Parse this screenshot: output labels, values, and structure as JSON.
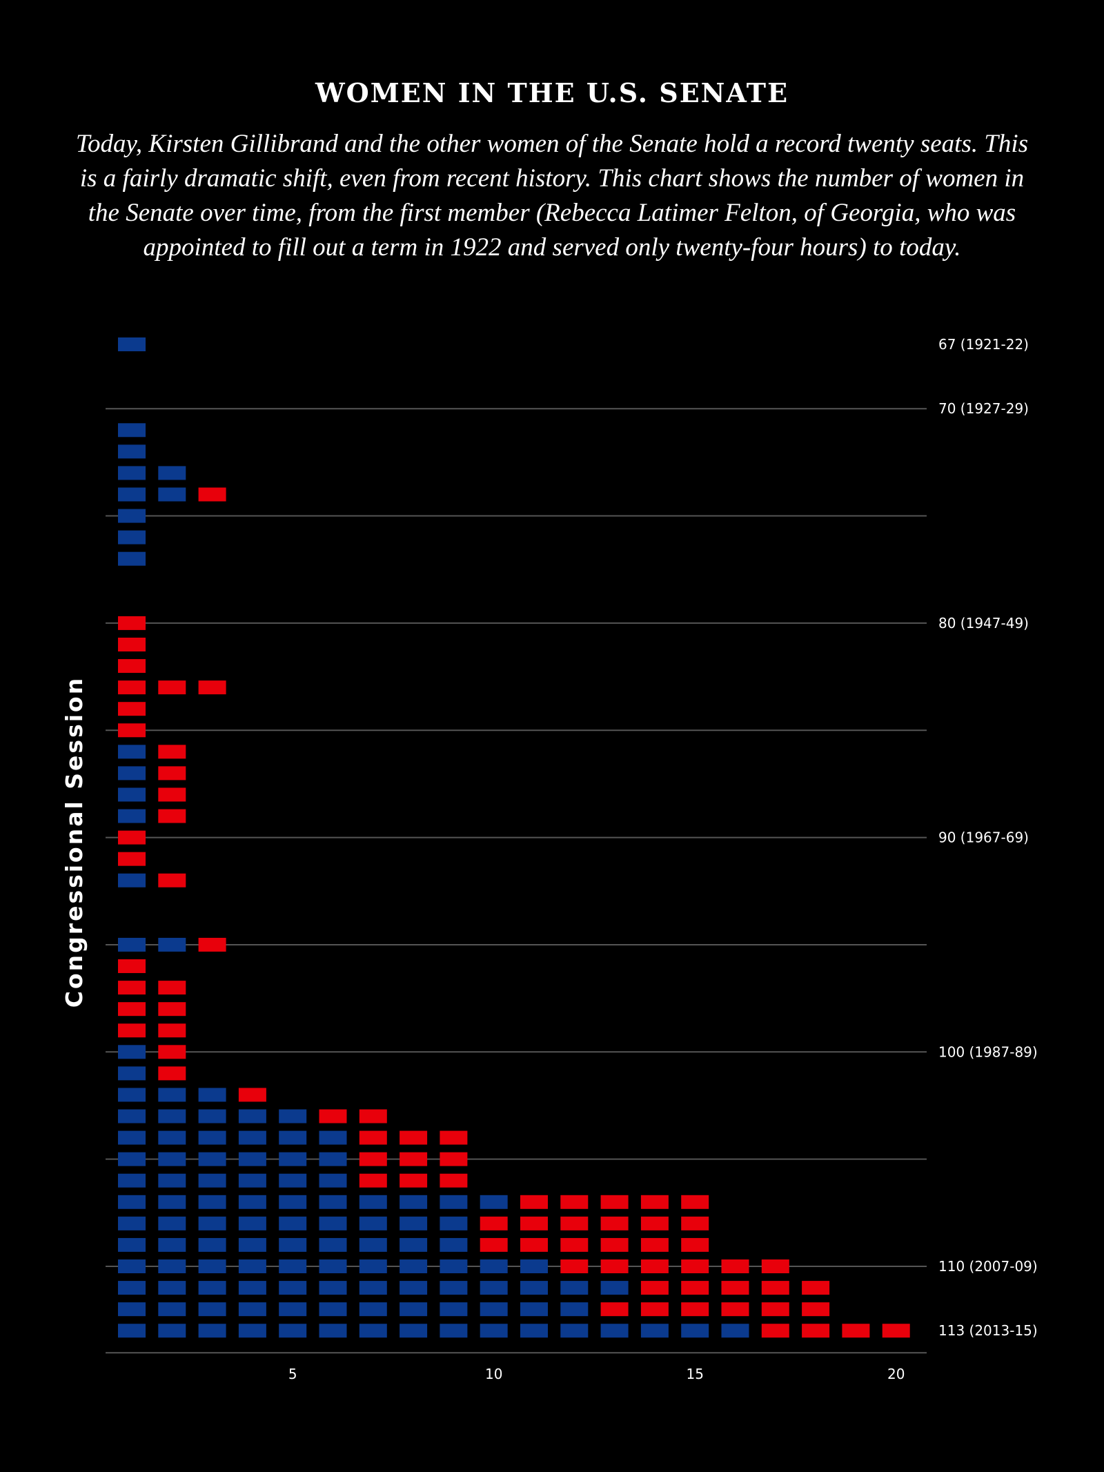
{
  "title": "Women in the U.S. Senate",
  "subtitle": "Today, Kirsten Gillibrand and the other women of the Senate hold a record twenty seats. This is a fairly dramatic shift, even from recent history. This chart shows the number of women in the Senate over time, from the first member (Rebecca Latimer Felton, of Georgia, who was appointed to fill out a term in 1922 and served only twenty-four hours) to today.",
  "colors": {
    "background": "#000000",
    "democrat": "#0b3a8e",
    "republican": "#e8000b",
    "gridline": "#555555",
    "text": "#ffffff"
  },
  "chart_data": {
    "type": "unit-bar",
    "title": "Women in the U.S. Senate",
    "ylabel": "Congressional Session",
    "xlabel": "",
    "xticks": [
      5,
      10,
      15,
      20
    ],
    "xlim": [
      0,
      20
    ],
    "ylim": [
      67,
      113
    ],
    "grid": true,
    "y_tick_labels": [
      {
        "session": 67,
        "label": "67 (1921-22)"
      },
      {
        "session": 70,
        "label": "70 (1927-29)"
      },
      {
        "session": 80,
        "label": "80 (1947-49)"
      },
      {
        "session": 90,
        "label": "90 (1967-69)"
      },
      {
        "session": 100,
        "label": "100 (1987-89)"
      },
      {
        "session": 110,
        "label": "110 (2007-09)"
      },
      {
        "session": 113,
        "label": "113 (2013-15)"
      }
    ],
    "gridline_sessions": [
      70,
      75,
      80,
      85,
      90,
      95,
      100,
      105,
      110
    ],
    "series_colors": {
      "D": "#0b3a8e",
      "R": "#e8000b"
    },
    "rows": [
      {
        "session": 67,
        "seats": "D"
      },
      {
        "session": 71,
        "seats": "D"
      },
      {
        "session": 72,
        "seats": "D"
      },
      {
        "session": 73,
        "seats": "DD"
      },
      {
        "session": 74,
        "seats": "DDR"
      },
      {
        "session": 75,
        "seats": "D"
      },
      {
        "session": 76,
        "seats": "D"
      },
      {
        "session": 77,
        "seats": "D"
      },
      {
        "session": 80,
        "seats": "R"
      },
      {
        "session": 81,
        "seats": "R"
      },
      {
        "session": 82,
        "seats": "R"
      },
      {
        "session": 83,
        "seats": "RRR"
      },
      {
        "session": 84,
        "seats": "R"
      },
      {
        "session": 85,
        "seats": "R"
      },
      {
        "session": 86,
        "seats": "DR"
      },
      {
        "session": 87,
        "seats": "DR"
      },
      {
        "session": 88,
        "seats": "DR"
      },
      {
        "session": 89,
        "seats": "DR"
      },
      {
        "session": 90,
        "seats": "R"
      },
      {
        "session": 91,
        "seats": "R"
      },
      {
        "session": 92,
        "seats": "DR"
      },
      {
        "session": 95,
        "seats": "DDR"
      },
      {
        "session": 96,
        "seats": "R"
      },
      {
        "session": 97,
        "seats": "RR"
      },
      {
        "session": 98,
        "seats": "RR"
      },
      {
        "session": 99,
        "seats": "RR"
      },
      {
        "session": 100,
        "seats": "DR"
      },
      {
        "session": 101,
        "seats": "DR"
      },
      {
        "session": 102,
        "seats": "DDDR"
      },
      {
        "session": 103,
        "seats": "DDDDDRR"
      },
      {
        "session": 104,
        "seats": "DDDDDDRRR"
      },
      {
        "session": 105,
        "seats": "DDDDDDRRR"
      },
      {
        "session": 106,
        "seats": "DDDDDDRRR"
      },
      {
        "session": 107,
        "seats": "DDDDDDDDDDRRRRR"
      },
      {
        "session": 108,
        "seats": "DDDDDDDDDRRRRRR"
      },
      {
        "session": 109,
        "seats": "DDDDDDDDDRRRRRR"
      },
      {
        "session": 110,
        "seats": "DDDDDDDDDDDRRRRRR"
      },
      {
        "session": 111,
        "seats": "DDDDDDDDDDDDDRRRRR"
      },
      {
        "session": 112,
        "seats": "DDDDDDDDDDDDRRRRRR"
      },
      {
        "session": 113,
        "seats": "DDDDDDDDDDDDDDDDRRRR"
      }
    ]
  }
}
